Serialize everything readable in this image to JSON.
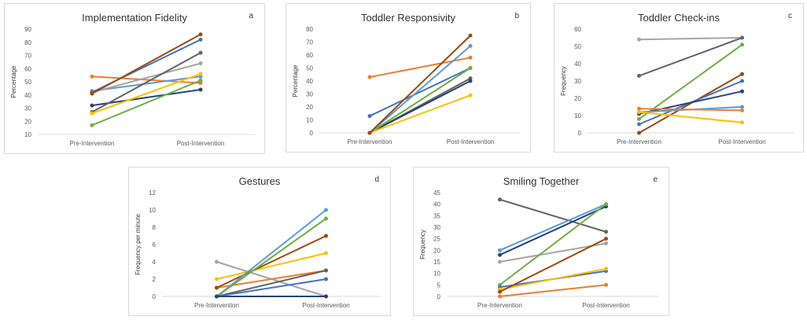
{
  "colors": {
    "blue": "#4472C4",
    "orange": "#ED7D31",
    "gray": "#A5A5A5",
    "yellow": "#FFC000",
    "lightblue": "#5B9BD5",
    "green": "#70AD47",
    "darkblue": "#264478",
    "brown": "#9E480E",
    "darkgray": "#636363"
  },
  "chart_data": [
    {
      "type": "line",
      "title": "Implementation Fidelity",
      "letter": "a",
      "ylabel": "Percentage",
      "categories": [
        "Pre-Intervention",
        "Post-Intervention"
      ],
      "ylim": [
        10,
        90
      ],
      "yticks": [
        10,
        20,
        30,
        40,
        50,
        60,
        70,
        80,
        90
      ],
      "series": [
        {
          "color": "orange",
          "values": [
            54,
            49
          ]
        },
        {
          "color": "lightblue",
          "values": [
            43,
            54
          ]
        },
        {
          "color": "gray",
          "values": [
            42,
            64
          ]
        },
        {
          "color": "blue",
          "values": [
            42,
            82
          ]
        },
        {
          "color": "brown",
          "values": [
            41,
            86
          ]
        },
        {
          "color": "darkblue",
          "values": [
            32,
            44
          ]
        },
        {
          "color": "darkgray",
          "values": [
            27,
            72
          ]
        },
        {
          "color": "yellow",
          "values": [
            26,
            56
          ]
        },
        {
          "color": "green",
          "values": [
            17,
            51
          ]
        }
      ]
    },
    {
      "type": "line",
      "title": "Toddler Responsivity",
      "letter": "b",
      "ylabel": "Percentage",
      "categories": [
        "Pre-Intervention",
        "Post-Intervention"
      ],
      "ylim": [
        0,
        80
      ],
      "yticks": [
        0,
        10,
        20,
        30,
        40,
        50,
        60,
        70,
        80
      ],
      "series": [
        {
          "color": "orange",
          "values": [
            43,
            58
          ]
        },
        {
          "color": "blue",
          "values": [
            13,
            50
          ]
        },
        {
          "color": "gray",
          "values": [
            0,
            42
          ]
        },
        {
          "color": "darkgray",
          "values": [
            0,
            42
          ]
        },
        {
          "color": "darkblue",
          "values": [
            0,
            40
          ]
        },
        {
          "color": "yellow",
          "values": [
            0,
            29
          ]
        },
        {
          "color": "green",
          "values": [
            0,
            50
          ]
        },
        {
          "color": "lightblue",
          "values": [
            0,
            67
          ]
        },
        {
          "color": "brown",
          "values": [
            0,
            75
          ]
        }
      ]
    },
    {
      "type": "line",
      "title": "Toddler Check-ins",
      "letter": "c",
      "ylabel": "Frequency",
      "categories": [
        "Pre-Intervention",
        "Post-Intervention"
      ],
      "ylim": [
        0,
        60
      ],
      "yticks": [
        0,
        10,
        20,
        30,
        40,
        50,
        60
      ],
      "series": [
        {
          "color": "gray",
          "values": [
            54,
            55
          ]
        },
        {
          "color": "darkgray",
          "values": [
            33,
            55
          ]
        },
        {
          "color": "green",
          "values": [
            8,
            51
          ]
        },
        {
          "color": "brown",
          "values": [
            0,
            34
          ]
        },
        {
          "color": "blue",
          "values": [
            5,
            30
          ]
        },
        {
          "color": "darkblue",
          "values": [
            11,
            24
          ]
        },
        {
          "color": "lightblue",
          "values": [
            12,
            15
          ]
        },
        {
          "color": "orange",
          "values": [
            14,
            13
          ]
        },
        {
          "color": "yellow",
          "values": [
            12,
            6
          ]
        }
      ]
    },
    {
      "type": "line",
      "title": "Gestures",
      "letter": "d",
      "ylabel": "Frequency per minute",
      "categories": [
        "Pre-Intervention",
        "Post-Intervention"
      ],
      "ylim": [
        0,
        12
      ],
      "yticks": [
        0,
        2,
        4,
        6,
        8,
        10,
        12
      ],
      "series": [
        {
          "color": "gray",
          "values": [
            4,
            0
          ]
        },
        {
          "color": "yellow",
          "values": [
            2,
            5
          ]
        },
        {
          "color": "orange",
          "values": [
            1,
            3
          ]
        },
        {
          "color": "brown",
          "values": [
            1,
            7
          ]
        },
        {
          "color": "lightblue",
          "values": [
            0,
            10
          ]
        },
        {
          "color": "green",
          "values": [
            0,
            9
          ]
        },
        {
          "color": "darkgray",
          "values": [
            0,
            3
          ]
        },
        {
          "color": "blue",
          "values": [
            0,
            2
          ]
        },
        {
          "color": "darkblue",
          "values": [
            0,
            0
          ]
        }
      ]
    },
    {
      "type": "line",
      "title": "Smiling Together",
      "letter": "e",
      "ylabel": "Frequency",
      "categories": [
        "Pre-Intervention",
        "Post-Intervention"
      ],
      "ylim": [
        0,
        45
      ],
      "yticks": [
        0,
        5,
        10,
        15,
        20,
        25,
        30,
        35,
        40,
        45
      ],
      "series": [
        {
          "color": "darkgray",
          "values": [
            42,
            28
          ]
        },
        {
          "color": "lightblue",
          "values": [
            20,
            40
          ]
        },
        {
          "color": "darkblue",
          "values": [
            18,
            39
          ]
        },
        {
          "color": "gray",
          "values": [
            15,
            23
          ]
        },
        {
          "color": "green",
          "values": [
            5,
            40
          ]
        },
        {
          "color": "blue",
          "values": [
            4,
            11
          ]
        },
        {
          "color": "yellow",
          "values": [
            3,
            12
          ]
        },
        {
          "color": "brown",
          "values": [
            2,
            25
          ]
        },
        {
          "color": "orange",
          "values": [
            0,
            5
          ]
        }
      ]
    }
  ]
}
